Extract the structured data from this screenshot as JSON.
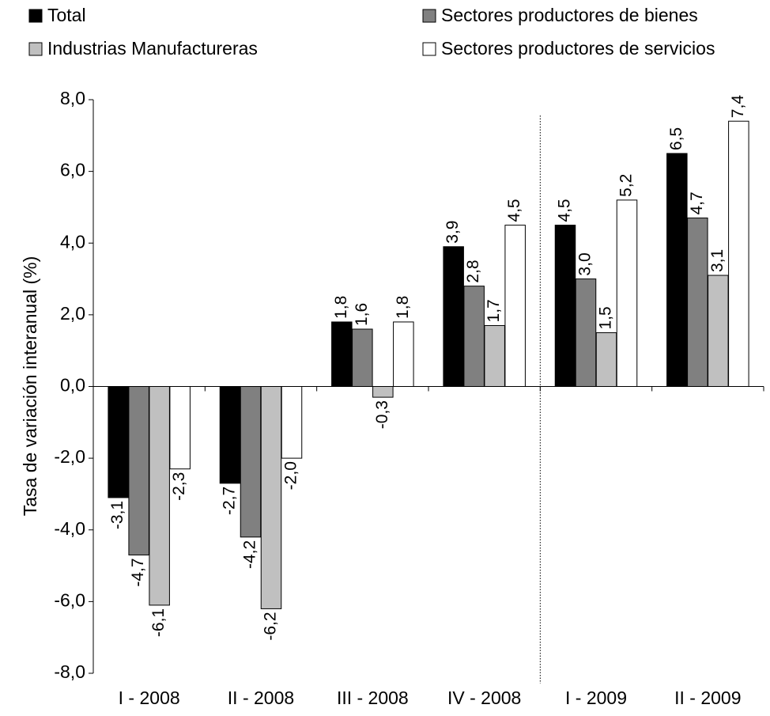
{
  "chart_data": {
    "type": "bar",
    "title": "",
    "ylabel": "Tasa de variación interanual (%)",
    "xlabel": "",
    "ylim": [
      -8,
      8
    ],
    "yticks": [
      "8,0",
      "6,0",
      "4,0",
      "2,0",
      "0,0",
      "-2,0",
      "-4,0",
      "-6,0",
      "-8,0"
    ],
    "ytick_values": [
      8,
      6,
      4,
      2,
      0,
      -2,
      -4,
      -6,
      -8
    ],
    "categories": [
      "I - 2008",
      "II - 2008",
      "III - 2008",
      "IV - 2008",
      "I - 2009",
      "II - 2009"
    ],
    "legend_position": "top",
    "separator_after_category_index": 3,
    "series": [
      {
        "name": "Total",
        "color": "#000000",
        "values": [
          -3.1,
          -2.7,
          1.8,
          3.9,
          4.5,
          6.5
        ],
        "labels": [
          "-3,1",
          "-2,7",
          "1,8",
          "3,9",
          "4,5",
          "6,5"
        ]
      },
      {
        "name": "Sectores productores de bienes",
        "color": "#808080",
        "values": [
          -4.7,
          -4.2,
          1.6,
          2.8,
          3.0,
          4.7
        ],
        "labels": [
          "-4,7",
          "-4,2",
          "1,6",
          "2,8",
          "3,0",
          "4,7"
        ]
      },
      {
        "name": "Industrias Manufactureras",
        "color": "#c0c0c0",
        "values": [
          -6.1,
          -6.2,
          -0.3,
          1.7,
          1.5,
          3.1
        ],
        "labels": [
          "-6,1",
          "-6,2",
          "-0,3",
          "1,7",
          "1,5",
          "3,1"
        ]
      },
      {
        "name": "Sectores productores de servicios",
        "color": "#ffffff",
        "values": [
          -2.3,
          -2.0,
          1.8,
          4.5,
          5.2,
          7.4
        ],
        "labels": [
          "-2,3",
          "-2,0",
          "1,8",
          "4,5",
          "5,2",
          "7,4"
        ]
      }
    ]
  }
}
